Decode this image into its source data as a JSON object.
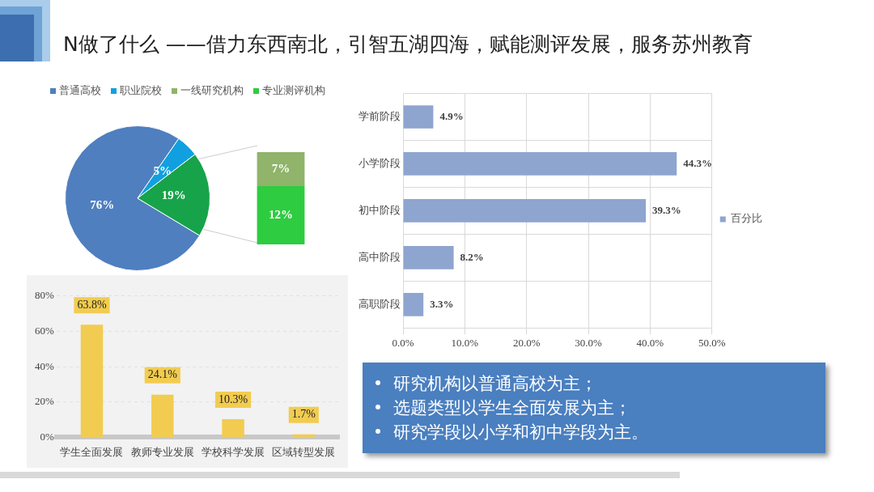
{
  "chart_data": [
    {
      "type": "pie",
      "title": "N做了什么 ——借力东西南北，引智五湖四海，赋能测评发展，服务苏州教育",
      "categories": [
        "普通高校",
        "职业院校",
        null
      ],
      "values": [
        76,
        5,
        19
      ],
      "colors": [
        "#4f7fbf",
        "#10a0e0",
        "#17a34a"
      ],
      "value_labels": [
        "76%",
        "5%",
        "19%"
      ],
      "legend": "top"
    },
    {
      "type": "bar",
      "stacked": true,
      "categories": [
        null
      ],
      "legend": "top",
      "series": [
        {
          "name": "专业测评机构",
          "color": "#2ecc40",
          "values": [
            12
          ],
          "value_labels": [
            "12%"
          ]
        },
        {
          "name": "一线研究机构",
          "color": "#8fb46a",
          "values": [
            7
          ],
          "value_labels": [
            "7%"
          ]
        }
      ]
    },
    {
      "type": "bar",
      "orientation": "horizontal",
      "categories": [
        "学前阶段",
        "小学阶段",
        "初中阶段",
        "高中阶段",
        "高职阶段"
      ],
      "series": [
        {
          "name": "百分比",
          "color": "#8ea5cf",
          "values": [
            4.9,
            44.3,
            39.3,
            8.2,
            3.3
          ],
          "value_labels": [
            "4.9%",
            "44.3%",
            "39.3%",
            "8.2%",
            "3.3%"
          ]
        }
      ],
      "xlim": [
        0,
        50
      ],
      "xticks": [
        {
          "value": 0,
          "label": "0.0%"
        },
        {
          "value": 10,
          "label": "10.0%"
        },
        {
          "value": 20,
          "label": "20.0%"
        },
        {
          "value": 30,
          "label": "30.0%"
        },
        {
          "value": 40,
          "label": "40.0%"
        },
        {
          "value": 50,
          "label": "50.0%"
        }
      ],
      "grid": true,
      "legend": "right"
    },
    {
      "type": "bar",
      "categories": [
        "学生全面发展",
        "教师专业发展",
        "学校科学发展",
        "区域转型发展"
      ],
      "values": [
        63.8,
        24.1,
        10.3,
        1.7
      ],
      "color": "#f2cc50",
      "value_labels": [
        "63.8%",
        "24.1%",
        "10.3%",
        "1.7%"
      ],
      "ylim": [
        0,
        80
      ],
      "yticks": [
        {
          "value": 0,
          "label": "0%"
        },
        {
          "value": 20,
          "label": "20%"
        },
        {
          "value": 40,
          "label": "40%"
        },
        {
          "value": 60,
          "label": "60%"
        },
        {
          "value": 80,
          "label": "80%"
        }
      ],
      "grid": "y"
    },
    {
      "type": "other",
      "annotations": [
        "研究机构以普通高校为主；",
        "选题类型以学生全面发展为主；",
        "研究学段以小学和初中学段为主。"
      ]
    }
  ]
}
